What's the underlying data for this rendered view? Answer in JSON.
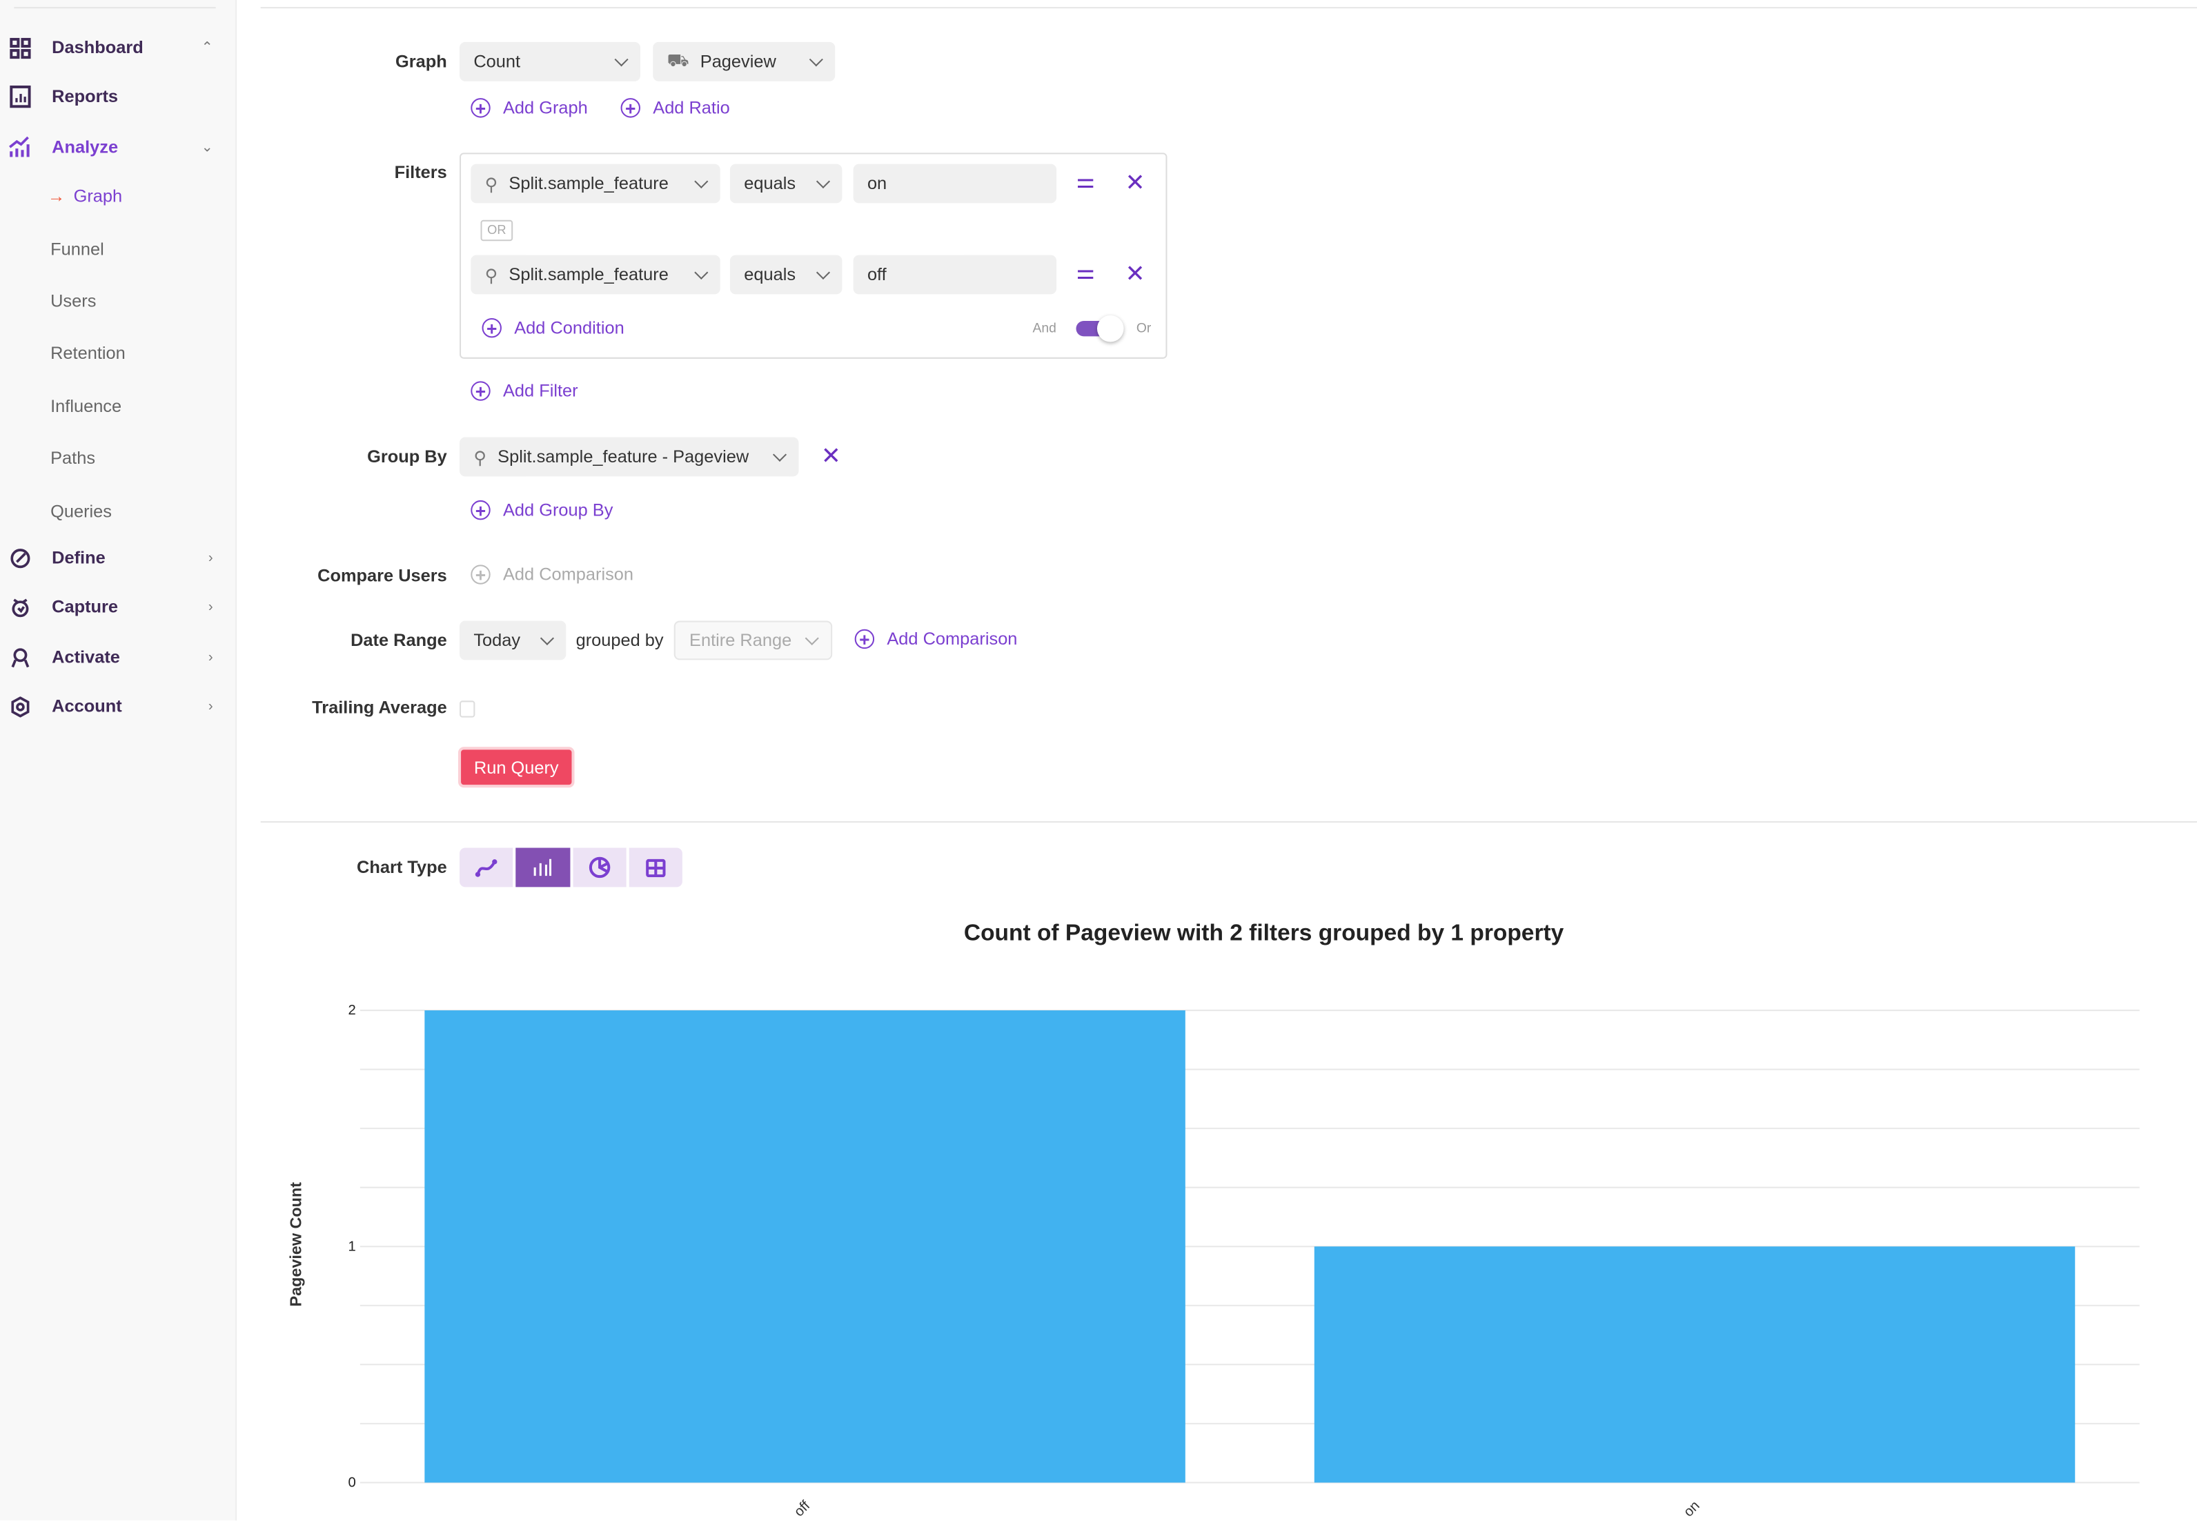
{
  "sidebar": {
    "items": [
      {
        "label": "Dashboard",
        "icon": "grid-icon"
      },
      {
        "label": "Reports",
        "icon": "report-icon"
      },
      {
        "label": "Analyze",
        "icon": "analyze-icon"
      },
      {
        "label": "Define",
        "icon": "define-icon"
      },
      {
        "label": "Capture",
        "icon": "capture-icon"
      },
      {
        "label": "Activate",
        "icon": "activate-icon"
      },
      {
        "label": "Account",
        "icon": "gear-icon"
      }
    ],
    "analyze_sub": [
      "Graph",
      "Funnel",
      "Users",
      "Retention",
      "Influence",
      "Paths",
      "Queries"
    ],
    "active_sub": "Graph"
  },
  "form": {
    "graph_label": "Graph",
    "graph_metric": "Count",
    "graph_event": "Pageview",
    "add_graph": "Add Graph",
    "add_ratio": "Add Ratio",
    "filters_label": "Filters",
    "filters": [
      {
        "property": "Split.sample_feature",
        "operator": "equals",
        "value": "on"
      },
      {
        "property": "Split.sample_feature",
        "operator": "equals",
        "value": "off"
      }
    ],
    "or_badge": "OR",
    "add_condition": "Add Condition",
    "toggle_and": "And",
    "toggle_or": "Or",
    "add_filter": "Add Filter",
    "group_by_label": "Group By",
    "group_by_value": "Split.sample_feature - Pageview",
    "add_group_by": "Add Group By",
    "compare_users_label": "Compare Users",
    "add_comparison_disabled": "Add Comparison",
    "date_range_label": "Date Range",
    "date_range_value": "Today",
    "grouped_by_label": "grouped by",
    "grouped_by_value": "Entire Range",
    "add_comparison": "Add Comparison",
    "trailing_average_label": "Trailing Average",
    "trailing_average_checked": false,
    "run_query": "Run Query",
    "chart_type_label": "Chart Type",
    "chart_types": [
      "line",
      "bar",
      "pie",
      "table"
    ],
    "chart_type_selected": "bar"
  },
  "colors": {
    "accent": "#7b3fd0",
    "run_button": "#ef4862",
    "bar": "#41b2f0",
    "chart_type_active": "#8350b3"
  },
  "chart_data": {
    "type": "bar",
    "title": "Count of Pageview with 2 filters grouped by 1 property",
    "xlabel": "",
    "ylabel": "Pageview Count",
    "categories": [
      "off",
      "on"
    ],
    "values": [
      2,
      1
    ],
    "ylim": [
      0,
      2
    ],
    "yticks": [
      "0",
      "1",
      "2"
    ],
    "grid": true
  }
}
